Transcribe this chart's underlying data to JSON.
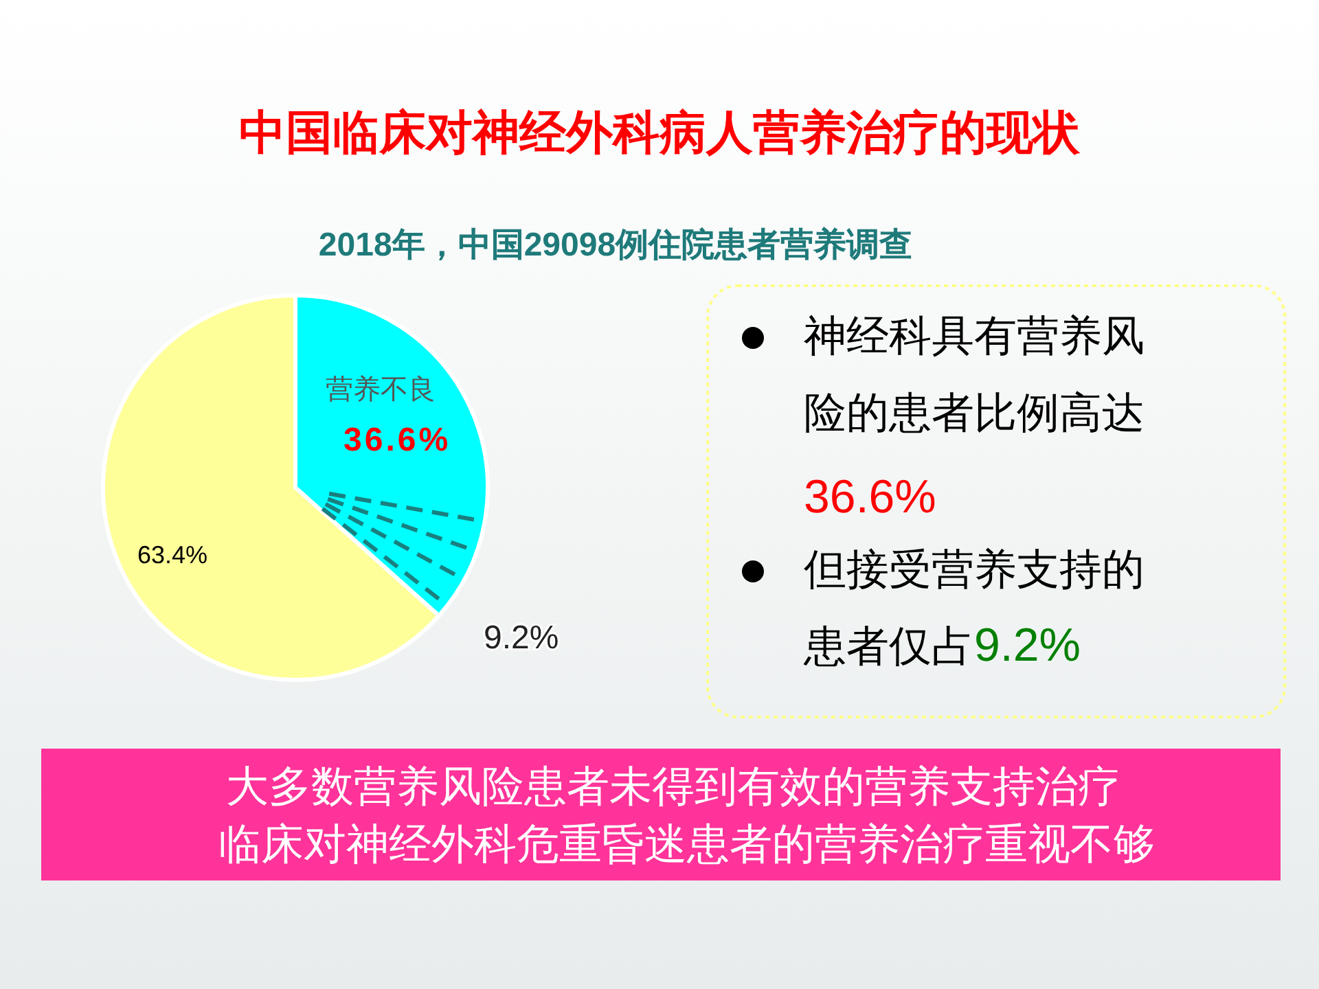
{
  "chart_data": {
    "type": "pie",
    "title": "中国临床对神经外科病人营养治疗的现状",
    "subtitle": "2018年，中国29098例住院患者营养调查",
    "categories": [
      "营养不良",
      null
    ],
    "values": [
      36.6,
      63.4
    ],
    "colors": [
      "#00ffff",
      "#ffff99"
    ],
    "value_labels": [
      "36.6%",
      "63.4%"
    ],
    "annotations": [
      "9.2%",
      "神经科具有营养风险的患者比例高达36.6%",
      "但接受营养支持的患者仅占9.2%",
      "大多数营养风险患者未得到有效的营养支持治疗",
      "临床对神经外科危重昏迷患者的营养治疗重视不够"
    ]
  }
}
